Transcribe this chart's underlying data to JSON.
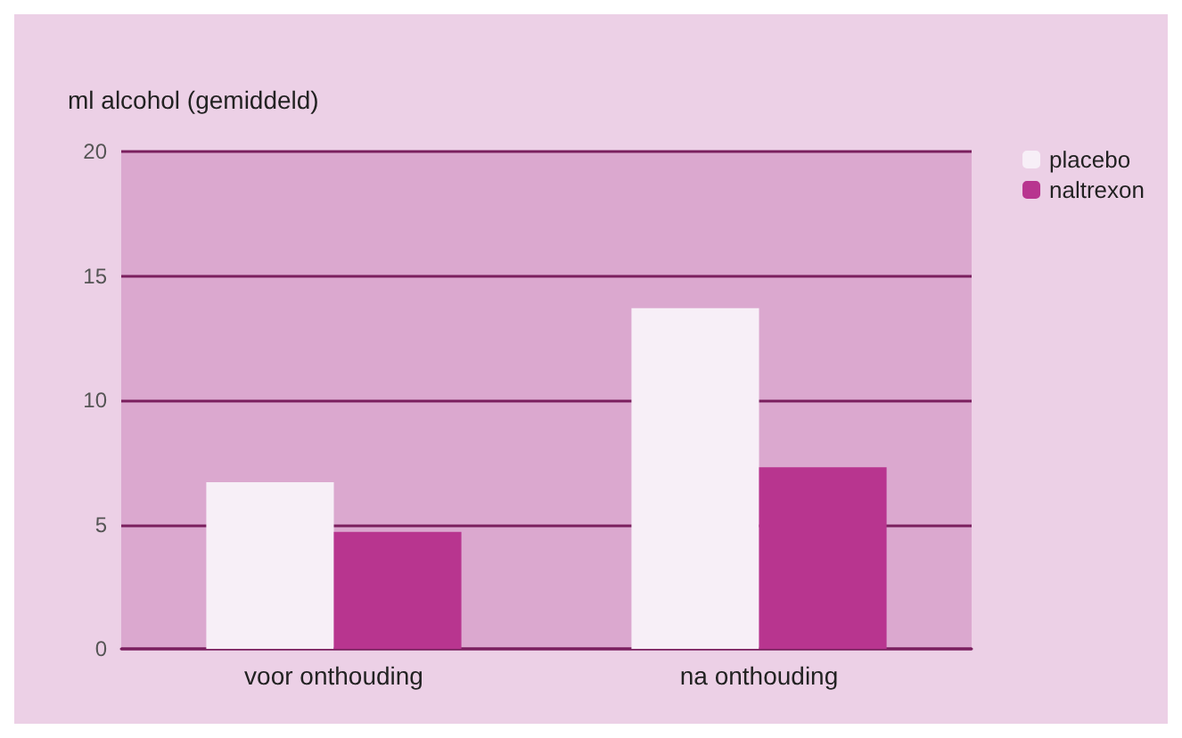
{
  "chart_data": {
    "type": "bar",
    "ylabel": "ml alcohol (gemiddeld)",
    "categories": [
      "voor onthouding",
      "na onthouding"
    ],
    "series": [
      {
        "name": "placebo",
        "color": "#f7eff7",
        "values": [
          6.7,
          13.7
        ]
      },
      {
        "name": "naltrexon",
        "color": "#b8358f",
        "values": [
          4.7,
          7.3
        ]
      }
    ],
    "ylim": [
      0,
      20
    ],
    "yticks": [
      0,
      5,
      10,
      15,
      20
    ],
    "grid": "y",
    "legend": "top right"
  }
}
